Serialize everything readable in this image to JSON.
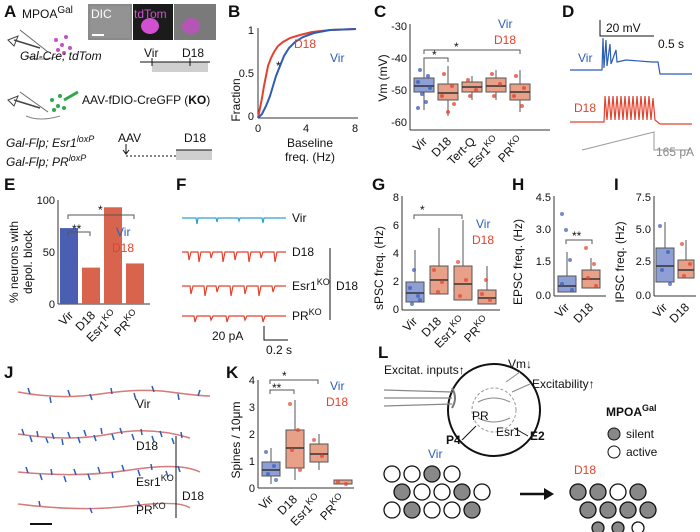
{
  "panelA": {
    "label": "A",
    "title": "MPOA",
    "title_sup": "Gal",
    "img_dic": "DIC",
    "img_tdtom": "tdTom",
    "genotype1": "Gal-Cre; tdTom",
    "virus": "AAV-fDIO-CreGFP (",
    "virus_ko": "KO",
    "virus_close": ")",
    "genotype2a": "Gal-Flp; Esr1",
    "genotype2b": "Gal-Flp; PR",
    "loxp": "loxP",
    "aav": "AAV",
    "tl_vir": "Vir",
    "tl_d18": "D18",
    "tl2_d18": "D18"
  },
  "panelB": {
    "label": "B",
    "ylabel": "Fraction",
    "xlabel1": "Baseline",
    "xlabel2": "freq. (Hz)",
    "yticks": [
      "1",
      "0.5",
      "0"
    ],
    "xticks": [
      "0",
      "4",
      "8"
    ],
    "legend_d18": "D18",
    "legend_vir": "Vir",
    "sig": "*"
  },
  "panelC": {
    "label": "C",
    "ylabel": "Vm (mV)",
    "yticks": [
      "-30",
      "-40",
      "-50",
      "-60"
    ],
    "legend_vir": "Vir",
    "legend_d18": "D18",
    "sig1": "*",
    "sig2": "*",
    "cats": [
      "Vir",
      "D18",
      "Tert-Q",
      "Esr1",
      "PR"
    ],
    "ko": "KO"
  },
  "panelD": {
    "label": "D",
    "scale_v": "20 mV",
    "scale_t": "0.5 s",
    "tr_vir": "Vir",
    "tr_d18": "D18",
    "current": "165 pA"
  },
  "panelE": {
    "label": "E",
    "ylabel1": "% neurons with",
    "ylabel2": "depol. block",
    "yticks": [
      "100",
      "50",
      "0"
    ],
    "legend_vir": "Vir",
    "legend_d18": "D18",
    "sig_a": "**",
    "sig_b": "*",
    "cats": [
      "Vir",
      "D18",
      "Esr1",
      "PR"
    ],
    "ko": "KO",
    "colors": {
      "vir": "#4a5fb1",
      "d18": "#d9644e"
    }
  },
  "panelF": {
    "label": "F",
    "tr_vir": "Vir",
    "tr_d18": "D18",
    "tr_esr1": "Esr1",
    "tr_pr": "PR",
    "ko": "KO",
    "group": "D18",
    "scale_a": "20 pA",
    "scale_t": "0.2 s"
  },
  "panelG": {
    "label": "G",
    "ylabel": "sPSC freq. (Hz)",
    "yticks": [
      "8",
      "6",
      "4",
      "2",
      "0"
    ],
    "legend_vir": "Vir",
    "legend_d18": "D18",
    "sig": "*",
    "cats": [
      "Vir",
      "D18",
      "Esr1",
      "PR"
    ],
    "ko": "KO"
  },
  "panelH": {
    "label": "H",
    "ylabel": "EPSC freq. (Hz)",
    "yticks": [
      "4.5",
      "3.0",
      "1.5",
      "0.0"
    ],
    "sig": "**",
    "cats": [
      "Vir",
      "D18"
    ]
  },
  "panelI": {
    "label": "I",
    "ylabel": "IPSC freq. (Hz)",
    "yticks": [
      "7.5",
      "5.0",
      "2.5",
      "0.0"
    ],
    "cats": [
      "Vir",
      "D18"
    ]
  },
  "panelJ": {
    "label": "J",
    "tr_vir": "Vir",
    "tr_d18": "D18",
    "tr_esr1": "Esr1",
    "tr_pr": "PR",
    "ko": "KO",
    "group": "D18"
  },
  "panelK": {
    "label": "K",
    "ylabel": "Spines / 10μm",
    "yticks": [
      "4",
      "3",
      "2",
      "1",
      "0"
    ],
    "legend_vir": "Vir",
    "legend_d18": "D18",
    "sig_a": "*",
    "sig_b": "**",
    "cats": [
      "Vir",
      "D18",
      "Esr1",
      "PR"
    ],
    "ko": "KO"
  },
  "panelL": {
    "label": "L",
    "excit": "Excitat. inputs↑",
    "vm": "Vm↓",
    "excitability": "Excitability↑",
    "pr": "PR",
    "esr1": "Esr1",
    "p4": "P4",
    "e2": "E2",
    "vir": "Vir",
    "d18": "D18",
    "legend_title": "MPOA",
    "legend_sup": "Gal",
    "silent": "silent",
    "active": "active"
  }
}
